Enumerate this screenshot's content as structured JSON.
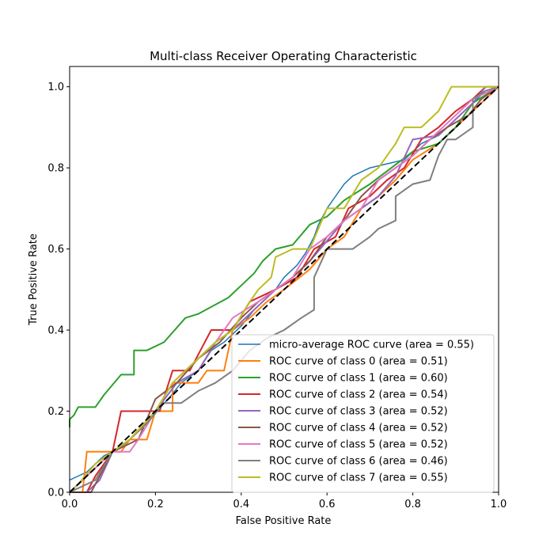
{
  "chart_data": {
    "type": "line",
    "title": "Multi-class Receiver Operating Characteristic",
    "xlabel": "False Positive Rate",
    "ylabel": "True Positive Rate",
    "xlim": [
      0.0,
      1.0
    ],
    "ylim": [
      0.0,
      1.05
    ],
    "xticks": [
      "0.0",
      "0.2",
      "0.4",
      "0.6",
      "0.8",
      "1.0"
    ],
    "yticks": [
      "0.0",
      "0.2",
      "0.4",
      "0.6",
      "0.8",
      "1.0"
    ],
    "grid": false,
    "legend_position": "lower right",
    "series": [
      {
        "name": "micro-average ROC curve (area = 0.55)",
        "color": "#1f77b4",
        "width": 1.5,
        "points": [
          [
            0,
            0.03
          ],
          [
            0.02,
            0.04
          ],
          [
            0.04,
            0.05
          ],
          [
            0.06,
            0.07
          ],
          [
            0.08,
            0.09
          ],
          [
            0.1,
            0.1
          ],
          [
            0.13,
            0.12
          ],
          [
            0.15,
            0.14
          ],
          [
            0.18,
            0.17
          ],
          [
            0.2,
            0.2
          ],
          [
            0.23,
            0.23
          ],
          [
            0.26,
            0.27
          ],
          [
            0.3,
            0.3
          ],
          [
            0.33,
            0.35
          ],
          [
            0.36,
            0.37
          ],
          [
            0.4,
            0.41
          ],
          [
            0.43,
            0.45
          ],
          [
            0.46,
            0.48
          ],
          [
            0.48,
            0.5
          ],
          [
            0.5,
            0.53
          ],
          [
            0.53,
            0.56
          ],
          [
            0.55,
            0.59
          ],
          [
            0.57,
            0.63
          ],
          [
            0.58,
            0.66
          ],
          [
            0.6,
            0.7
          ],
          [
            0.62,
            0.73
          ],
          [
            0.64,
            0.76
          ],
          [
            0.66,
            0.78
          ],
          [
            0.7,
            0.8
          ],
          [
            0.74,
            0.81
          ],
          [
            0.78,
            0.82
          ],
          [
            0.82,
            0.86
          ],
          [
            0.86,
            0.88
          ],
          [
            0.9,
            0.92
          ],
          [
            0.94,
            0.96
          ],
          [
            0.97,
            0.99
          ],
          [
            1,
            1
          ]
        ]
      },
      {
        "name": "ROC curve of class 0 (area = 0.51)",
        "color": "#ff7f0e",
        "width": 2,
        "points": [
          [
            0,
            0
          ],
          [
            0.03,
            0.0
          ],
          [
            0.04,
            0.1
          ],
          [
            0.1,
            0.1
          ],
          [
            0.12,
            0.1
          ],
          [
            0.14,
            0.13
          ],
          [
            0.18,
            0.13
          ],
          [
            0.2,
            0.2
          ],
          [
            0.24,
            0.2
          ],
          [
            0.24,
            0.27
          ],
          [
            0.3,
            0.27
          ],
          [
            0.32,
            0.3
          ],
          [
            0.36,
            0.3
          ],
          [
            0.38,
            0.4
          ],
          [
            0.42,
            0.43
          ],
          [
            0.46,
            0.47
          ],
          [
            0.5,
            0.5
          ],
          [
            0.56,
            0.55
          ],
          [
            0.6,
            0.6
          ],
          [
            0.64,
            0.63
          ],
          [
            0.68,
            0.7
          ],
          [
            0.72,
            0.73
          ],
          [
            0.76,
            0.77
          ],
          [
            0.8,
            0.82
          ],
          [
            0.86,
            0.86
          ],
          [
            0.9,
            0.9
          ],
          [
            0.95,
            0.95
          ],
          [
            1,
            1
          ]
        ]
      },
      {
        "name": "ROC curve of class 1 (area = 0.60)",
        "color": "#2ca02c",
        "width": 2,
        "points": [
          [
            0,
            0.16
          ],
          [
            0,
            0.18
          ],
          [
            0.01,
            0.19
          ],
          [
            0.02,
            0.21
          ],
          [
            0.06,
            0.21
          ],
          [
            0.08,
            0.24
          ],
          [
            0.12,
            0.29
          ],
          [
            0.15,
            0.29
          ],
          [
            0.15,
            0.35
          ],
          [
            0.18,
            0.35
          ],
          [
            0.22,
            0.37
          ],
          [
            0.27,
            0.43
          ],
          [
            0.3,
            0.44
          ],
          [
            0.37,
            0.48
          ],
          [
            0.4,
            0.51
          ],
          [
            0.43,
            0.54
          ],
          [
            0.45,
            0.57
          ],
          [
            0.48,
            0.6
          ],
          [
            0.52,
            0.61
          ],
          [
            0.56,
            0.66
          ],
          [
            0.6,
            0.68
          ],
          [
            0.64,
            0.72
          ],
          [
            0.7,
            0.76
          ],
          [
            0.75,
            0.8
          ],
          [
            0.8,
            0.84
          ],
          [
            0.86,
            0.86
          ],
          [
            0.9,
            0.9
          ],
          [
            0.94,
            0.96
          ],
          [
            1,
            1
          ]
        ]
      },
      {
        "name": "ROC curve of class 2 (area = 0.54)",
        "color": "#d62728",
        "width": 2,
        "points": [
          [
            0,
            0
          ],
          [
            0.04,
            0.0
          ],
          [
            0.06,
            0.04
          ],
          [
            0.1,
            0.1
          ],
          [
            0.12,
            0.2
          ],
          [
            0.21,
            0.2
          ],
          [
            0.24,
            0.3
          ],
          [
            0.28,
            0.3
          ],
          [
            0.33,
            0.4
          ],
          [
            0.38,
            0.4
          ],
          [
            0.42,
            0.47
          ],
          [
            0.48,
            0.5
          ],
          [
            0.53,
            0.53
          ],
          [
            0.57,
            0.6
          ],
          [
            0.62,
            0.63
          ],
          [
            0.65,
            0.7
          ],
          [
            0.7,
            0.73
          ],
          [
            0.74,
            0.77
          ],
          [
            0.78,
            0.8
          ],
          [
            0.82,
            0.87
          ],
          [
            0.86,
            0.9
          ],
          [
            0.9,
            0.94
          ],
          [
            0.94,
            0.97
          ],
          [
            0.97,
            1
          ],
          [
            1,
            1
          ]
        ]
      },
      {
        "name": "ROC curve of class 3 (area = 0.52)",
        "color": "#9467bd",
        "width": 2,
        "points": [
          [
            0,
            0
          ],
          [
            0.04,
            0.0
          ],
          [
            0.07,
            0.03
          ],
          [
            0.1,
            0.1
          ],
          [
            0.14,
            0.13
          ],
          [
            0.2,
            0.2
          ],
          [
            0.25,
            0.27
          ],
          [
            0.3,
            0.3
          ],
          [
            0.34,
            0.37
          ],
          [
            0.38,
            0.4
          ],
          [
            0.43,
            0.45
          ],
          [
            0.48,
            0.5
          ],
          [
            0.52,
            0.53
          ],
          [
            0.56,
            0.57
          ],
          [
            0.6,
            0.62
          ],
          [
            0.64,
            0.67
          ],
          [
            0.68,
            0.7
          ],
          [
            0.72,
            0.73
          ],
          [
            0.76,
            0.78
          ],
          [
            0.8,
            0.87
          ],
          [
            0.86,
            0.88
          ],
          [
            0.9,
            0.92
          ],
          [
            0.94,
            0.96
          ],
          [
            0.97,
            1
          ],
          [
            1,
            1
          ]
        ]
      },
      {
        "name": "ROC curve of class 4 (area = 0.52)",
        "color": "#8c564b",
        "width": 2,
        "points": [
          [
            0,
            0
          ],
          [
            0.05,
            0.0
          ],
          [
            0.07,
            0.04
          ],
          [
            0.1,
            0.1
          ],
          [
            0.16,
            0.13
          ],
          [
            0.2,
            0.23
          ],
          [
            0.25,
            0.27
          ],
          [
            0.3,
            0.33
          ],
          [
            0.35,
            0.37
          ],
          [
            0.4,
            0.43
          ],
          [
            0.44,
            0.47
          ],
          [
            0.48,
            0.5
          ],
          [
            0.52,
            0.53
          ],
          [
            0.56,
            0.57
          ],
          [
            0.6,
            0.63
          ],
          [
            0.64,
            0.67
          ],
          [
            0.68,
            0.73
          ],
          [
            0.72,
            0.77
          ],
          [
            0.76,
            0.8
          ],
          [
            0.8,
            0.83
          ],
          [
            0.84,
            0.87
          ],
          [
            0.88,
            0.9
          ],
          [
            0.93,
            0.93
          ],
          [
            0.96,
            0.97
          ],
          [
            1,
            1
          ]
        ]
      },
      {
        "name": "ROC curve of class 5 (area = 0.52)",
        "color": "#e377c2",
        "width": 2,
        "points": [
          [
            0,
            0
          ],
          [
            0.03,
            0.03
          ],
          [
            0.07,
            0.07
          ],
          [
            0.1,
            0.1
          ],
          [
            0.12,
            0.1
          ],
          [
            0.14,
            0.1
          ],
          [
            0.16,
            0.13
          ],
          [
            0.2,
            0.2
          ],
          [
            0.24,
            0.27
          ],
          [
            0.3,
            0.33
          ],
          [
            0.34,
            0.37
          ],
          [
            0.38,
            0.43
          ],
          [
            0.44,
            0.47
          ],
          [
            0.48,
            0.5
          ],
          [
            0.52,
            0.53
          ],
          [
            0.56,
            0.6
          ],
          [
            0.6,
            0.63
          ],
          [
            0.64,
            0.67
          ],
          [
            0.68,
            0.7
          ],
          [
            0.72,
            0.77
          ],
          [
            0.76,
            0.8
          ],
          [
            0.8,
            0.83
          ],
          [
            0.84,
            0.87
          ],
          [
            0.9,
            0.93
          ],
          [
            0.94,
            0.97
          ],
          [
            1,
            1
          ]
        ]
      },
      {
        "name": "ROC curve of class 6 (area = 0.46)",
        "color": "#7f7f7f",
        "width": 2,
        "points": [
          [
            0,
            0
          ],
          [
            0.06,
            0.03
          ],
          [
            0.1,
            0.1
          ],
          [
            0.14,
            0.13
          ],
          [
            0.18,
            0.17
          ],
          [
            0.22,
            0.22
          ],
          [
            0.26,
            0.22
          ],
          [
            0.3,
            0.25
          ],
          [
            0.34,
            0.27
          ],
          [
            0.38,
            0.3
          ],
          [
            0.42,
            0.35
          ],
          [
            0.46,
            0.38
          ],
          [
            0.5,
            0.4
          ],
          [
            0.54,
            0.43
          ],
          [
            0.57,
            0.45
          ],
          [
            0.57,
            0.53
          ],
          [
            0.6,
            0.6
          ],
          [
            0.66,
            0.6
          ],
          [
            0.7,
            0.63
          ],
          [
            0.72,
            0.65
          ],
          [
            0.76,
            0.67
          ],
          [
            0.76,
            0.73
          ],
          [
            0.8,
            0.76
          ],
          [
            0.84,
            0.77
          ],
          [
            0.86,
            0.83
          ],
          [
            0.88,
            0.87
          ],
          [
            0.9,
            0.87
          ],
          [
            0.94,
            0.9
          ],
          [
            0.94,
            0.97
          ],
          [
            0.97,
            0.99
          ],
          [
            1,
            1
          ]
        ]
      },
      {
        "name": "ROC curve of class 7 (area = 0.55)",
        "color": "#bcbd22",
        "width": 2,
        "points": [
          [
            0,
            0
          ],
          [
            0.02,
            0.02
          ],
          [
            0.06,
            0.07
          ],
          [
            0.1,
            0.1
          ],
          [
            0.14,
            0.13
          ],
          [
            0.2,
            0.2
          ],
          [
            0.24,
            0.27
          ],
          [
            0.3,
            0.33
          ],
          [
            0.34,
            0.37
          ],
          [
            0.38,
            0.4
          ],
          [
            0.42,
            0.47
          ],
          [
            0.44,
            0.5
          ],
          [
            0.47,
            0.53
          ],
          [
            0.48,
            0.58
          ],
          [
            0.52,
            0.6
          ],
          [
            0.56,
            0.6
          ],
          [
            0.6,
            0.7
          ],
          [
            0.64,
            0.7
          ],
          [
            0.68,
            0.77
          ],
          [
            0.72,
            0.8
          ],
          [
            0.76,
            0.86
          ],
          [
            0.78,
            0.9
          ],
          [
            0.82,
            0.9
          ],
          [
            0.86,
            0.94
          ],
          [
            0.89,
            1
          ],
          [
            0.95,
            1
          ],
          [
            1,
            1
          ]
        ]
      },
      {
        "name": "",
        "color": "#000000",
        "width": 2,
        "dashed": true,
        "points": [
          [
            0,
            0
          ],
          [
            1,
            1
          ]
        ]
      }
    ]
  }
}
